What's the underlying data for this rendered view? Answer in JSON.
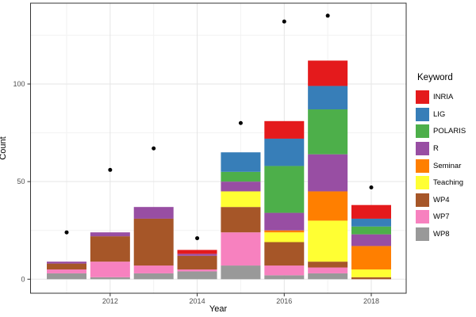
{
  "chart_data": {
    "type": "bar",
    "stacked": true,
    "xlabel": "Year",
    "ylabel": "Count",
    "legend_title": "Keyword",
    "legend_position": "right",
    "x": [
      2011,
      2012,
      2013,
      2014,
      2015,
      2016,
      2017,
      2018
    ],
    "x_major_ticks": [
      2012,
      2014,
      2016,
      2018
    ],
    "x_minor_ticks": [
      2011,
      2013,
      2015,
      2017
    ],
    "y_ticks": [
      0,
      50,
      100
    ],
    "y_minor_ticks": [
      25,
      75,
      125
    ],
    "ylim": [
      -7.2,
      141.5
    ],
    "grid_on": true,
    "series": [
      {
        "name": "INRIA",
        "color": "#E41A1C",
        "values": [
          0,
          0,
          0,
          2,
          0,
          9,
          13,
          7
        ]
      },
      {
        "name": "LIG",
        "color": "#377EB8",
        "values": [
          0,
          0,
          0,
          0,
          10,
          14,
          12,
          4
        ]
      },
      {
        "name": "POLARIS",
        "color": "#4DAF4A",
        "values": [
          0,
          0,
          0,
          0,
          5,
          24,
          23,
          4
        ]
      },
      {
        "name": "R",
        "color": "#984EA3",
        "values": [
          1,
          2,
          6,
          1,
          5,
          9,
          19,
          6
        ]
      },
      {
        "name": "Seminar",
        "color": "#FF7F00",
        "values": [
          0,
          0,
          0,
          0,
          0,
          1,
          15,
          12
        ]
      },
      {
        "name": "Teaching",
        "color": "#FFFF33",
        "values": [
          0,
          0,
          0,
          0,
          8,
          5,
          21,
          4
        ]
      },
      {
        "name": "WP4",
        "color": "#A65628",
        "values": [
          3,
          13,
          24,
          7,
          13,
          12,
          3,
          1
        ]
      },
      {
        "name": "WP7",
        "color": "#F781BF",
        "values": [
          2,
          8,
          4,
          1,
          17,
          5,
          3,
          0
        ]
      },
      {
        "name": "WP8",
        "color": "#999999",
        "values": [
          3,
          1,
          3,
          4,
          7,
          2,
          3,
          0
        ]
      }
    ],
    "stack_order_top_to_bottom": [
      "INRIA",
      "LIG",
      "POLARIS",
      "R",
      "Seminar",
      "Teaching",
      "WP4",
      "WP7",
      "WP8"
    ],
    "points": {
      "color": "#000000",
      "values": [
        24,
        56,
        67,
        21,
        80,
        132,
        135,
        47
      ]
    },
    "colors": {
      "panel_border": "#333333",
      "grid_major": "#E5E5E5",
      "grid_minor": "#F2F2F2",
      "tick_label": "#4D4D4D",
      "tick_mark": "#333333"
    }
  }
}
